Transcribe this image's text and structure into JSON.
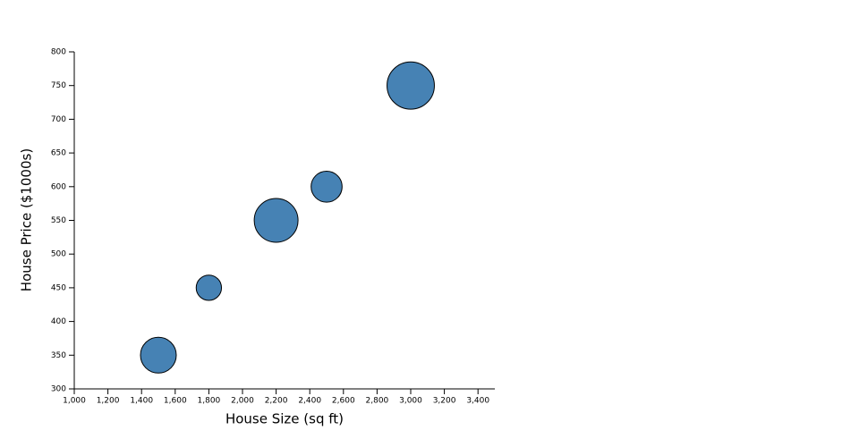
{
  "chart_data": {
    "type": "bubble",
    "x_label": "House Size (sq ft)",
    "y_label": "House Price ($1000s)",
    "color": "#4682b4",
    "series": [
      {
        "x": [
          1500,
          1800,
          2200,
          2500,
          3000
        ],
        "values": [
          350,
          450,
          550,
          600,
          750
        ],
        "sizes": [
          4,
          2,
          6,
          3,
          7
        ]
      }
    ],
    "xlim": [
      1000,
      3500
    ],
    "xticks": [
      {
        "value": 1000,
        "label": "1,000"
      },
      {
        "value": 1200,
        "label": "1,200"
      },
      {
        "value": 1400,
        "label": "1,400"
      },
      {
        "value": 1600,
        "label": "1,600"
      },
      {
        "value": 1800,
        "label": "1,800"
      },
      {
        "value": 2000,
        "label": "2,000"
      },
      {
        "value": 2200,
        "label": "2,200"
      },
      {
        "value": 2400,
        "label": "2,400"
      },
      {
        "value": 2600,
        "label": "2,600"
      },
      {
        "value": 2800,
        "label": "2,800"
      },
      {
        "value": 3000,
        "label": "3,000"
      },
      {
        "value": 3200,
        "label": "3,200"
      },
      {
        "value": 3400,
        "label": "3,400"
      }
    ],
    "ylim": [
      300,
      800
    ],
    "yticks": [
      300,
      350,
      400,
      450,
      500,
      550,
      600,
      650,
      700,
      750,
      800
    ]
  }
}
